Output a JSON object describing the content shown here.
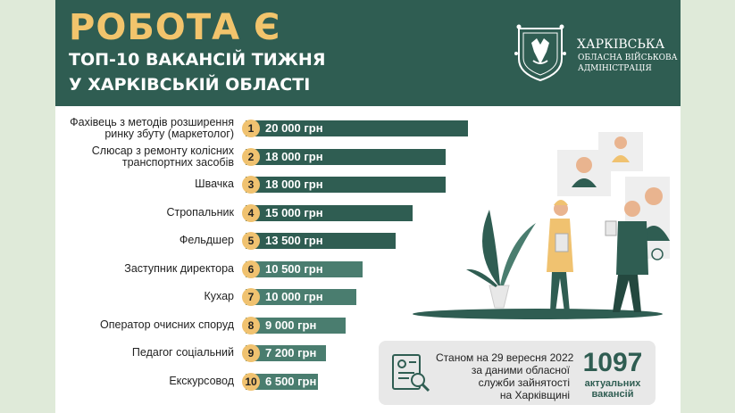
{
  "header": {
    "title": "РОБОТА Є",
    "subtitle_line1": "ТОП-10 ВАКАНСІЙ ТИЖНЯ",
    "subtitle_line2": "У ХАРКІВСЬКІЙ ОБЛАСТІ",
    "org_line1": "ХАРКІВСЬКА",
    "org_line2": "ОБЛАСНА ВІЙСЬКОВА",
    "org_line3": "АДМІНІСТРАЦІЯ",
    "emblem_icon": "kharkiv-coat-of-arms-icon"
  },
  "colors": {
    "header_bg": "#2f5d52",
    "title_yellow": "#f2c46c",
    "circle": "#f0c270",
    "bar_dark": "#2f5d52",
    "bar_light": "#4a7d6f",
    "page_bg": "#dfead9"
  },
  "chart_data": {
    "type": "bar",
    "orientation": "horizontal",
    "rows": [
      {
        "rank": "1",
        "label": [
          "Фахівець з методів розширення",
          "ринку збуту (маркетолог)"
        ],
        "value_label": "20 000 грн",
        "value": 20000
      },
      {
        "rank": "2",
        "label": [
          "Слюсар з ремонту колісних",
          "транспортних засобів"
        ],
        "value_label": "18 000 грн",
        "value": 18000
      },
      {
        "rank": "3",
        "label": [
          "Швачка"
        ],
        "value_label": "18 000 грн",
        "value": 18000
      },
      {
        "rank": "4",
        "label": [
          "Стропальник"
        ],
        "value_label": "15 000 грн",
        "value": 15000
      },
      {
        "rank": "5",
        "label": [
          "Фельдшер"
        ],
        "value_label": "13 500 грн",
        "value": 13500
      },
      {
        "rank": "6",
        "label": [
          "Заступник директора"
        ],
        "value_label": "10 500 грн",
        "value": 10500
      },
      {
        "rank": "7",
        "label": [
          "Кухар"
        ],
        "value_label": "10 000 грн",
        "value": 10000
      },
      {
        "rank": "8",
        "label": [
          "Оператор очисних споруд"
        ],
        "value_label": "9 000 грн",
        "value": 9000
      },
      {
        "rank": "9",
        "label": [
          "Педагог соціальний"
        ],
        "value_label": "7 200 грн",
        "value": 7200
      },
      {
        "rank": "10",
        "label": [
          "Екскурсовод"
        ],
        "value_label": "6 500 грн",
        "value": 6500
      }
    ]
  },
  "info": {
    "line1": "Станом на 29 вересня 2022",
    "line2": "за даними обласної",
    "line3": "служби зайнятості",
    "line4": "на Харківщині",
    "number": "1097",
    "caption1": "актуальних",
    "caption2": "вакансій",
    "icon": "document-search-icon"
  }
}
